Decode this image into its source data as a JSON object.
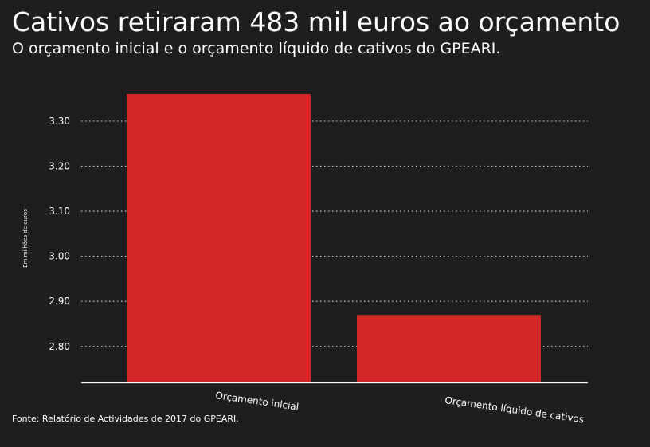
{
  "header": {
    "title": "Cativos retiraram 483 mil euros ao orçamento",
    "subtitle": "O orçamento inicial e o orçamento líquido de cativos do GPEARI."
  },
  "footer": {
    "source": "Fonte: Relatório de Actividades de 2017 do GPEARI."
  },
  "colors": {
    "background": "#1e1e1e",
    "bar": "#d42828",
    "text": "#ffffff",
    "grid": "#cfcfcf"
  },
  "chart_data": {
    "type": "bar",
    "title": "Cativos retiraram 483 mil euros ao orçamento",
    "subtitle": "O orçamento inicial e o orçamento líquido de cativos do GPEARI.",
    "xlabel": "",
    "ylabel": "Em milhões de euros",
    "categories": [
      "Orçamento inicial",
      "Orçamento líquido de cativos"
    ],
    "values": [
      3.36,
      2.87
    ],
    "ylim": [
      2.72,
      3.36
    ],
    "yticks": [
      2.8,
      2.9,
      3.0,
      3.1,
      3.2,
      3.3
    ],
    "ytick_labels": [
      "2.80",
      "2.90",
      "3.00",
      "3.10",
      "3.20",
      "3.30"
    ],
    "grid": true,
    "grid_style": "dotted",
    "legend": "none"
  }
}
